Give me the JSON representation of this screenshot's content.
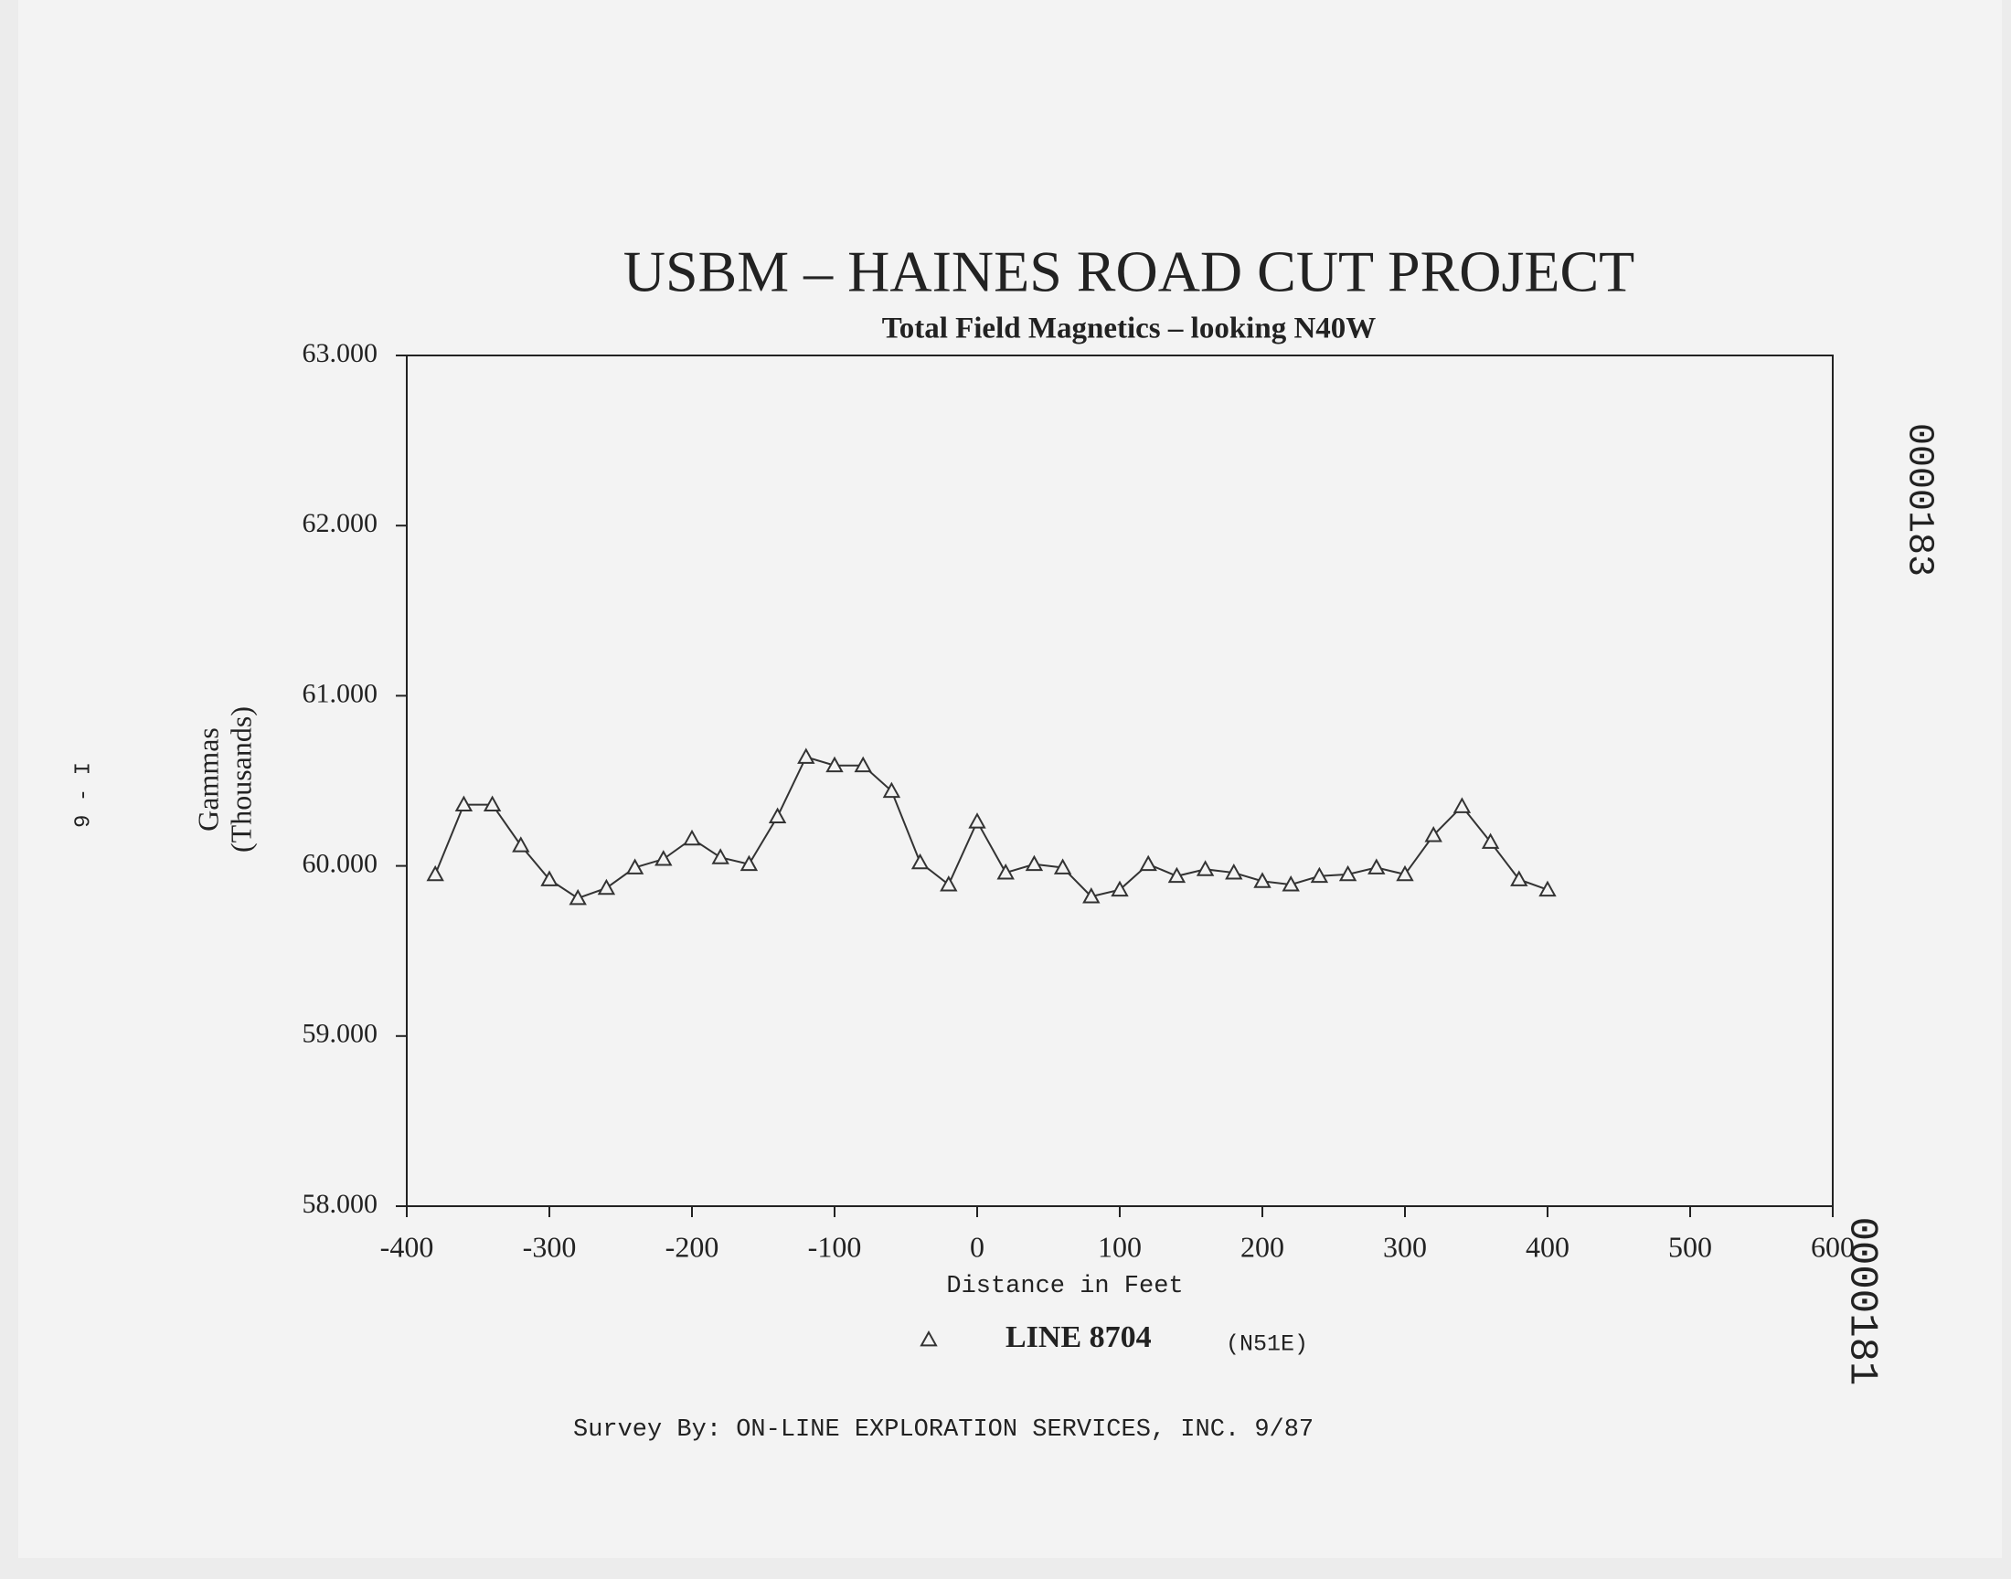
{
  "chart_data": {
    "type": "line",
    "title": "USBM – HAINES ROAD CUT PROJECT",
    "subtitle": "Total Field Magnetics – looking N40W",
    "xlabel": "Distance in Feet",
    "ylabel": [
      "Gammas",
      "(Thousands)"
    ],
    "x": [
      -380,
      -360,
      -340,
      -320,
      -300,
      -280,
      -260,
      -240,
      -220,
      -200,
      -180,
      -160,
      -140,
      -120,
      -100,
      -80,
      -60,
      -40,
      -20,
      0,
      20,
      40,
      60,
      80,
      100,
      120,
      140,
      160,
      180,
      200,
      220,
      240,
      260,
      280,
      300,
      320,
      340,
      360,
      380,
      400
    ],
    "series": [
      {
        "name": "LINE 8704",
        "color": "#333333",
        "values": [
          59.95,
          60.36,
          60.36,
          60.12,
          59.92,
          59.81,
          59.87,
          59.99,
          60.04,
          60.16,
          60.05,
          60.01,
          60.29,
          60.64,
          60.59,
          60.59,
          60.44,
          60.02,
          59.89,
          60.26,
          59.96,
          60.01,
          59.99,
          59.82,
          59.86,
          60.01,
          59.94,
          59.98,
          59.96,
          59.91,
          59.89,
          59.94,
          59.95,
          59.99,
          59.95,
          60.18,
          60.35,
          60.14,
          59.92,
          59.86
        ]
      }
    ],
    "legend_note": "(N51E)",
    "xlim": [
      -400,
      600
    ],
    "xticks": [
      -400,
      -300,
      -200,
      -100,
      0,
      100,
      200,
      300,
      400,
      500,
      600
    ],
    "ylim": [
      58,
      63
    ],
    "yticks": [
      {
        "value": 58,
        "label": "58.000"
      },
      {
        "value": 59,
        "label": "59.000"
      },
      {
        "value": 60,
        "label": "60.000"
      },
      {
        "value": 61,
        "label": "61.000"
      },
      {
        "value": 62,
        "label": "62.000"
      },
      {
        "value": 63,
        "label": "63.000"
      }
    ],
    "grid": false,
    "footer": "Survey By:  ON-LINE EXPLORATION SERVICES, INC.  9/87",
    "margin_notes": [
      "9 - I",
      "0000183",
      "0000181"
    ]
  }
}
